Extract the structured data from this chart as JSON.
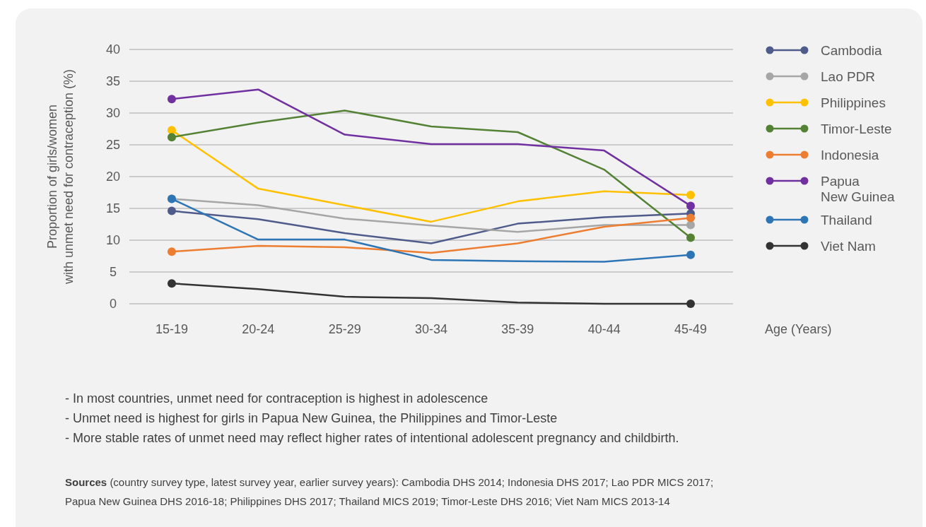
{
  "chart_data": {
    "type": "line",
    "ylabel": "Proportion of girls/women\nwith unmet need for contraception (%)",
    "xlabel": "Age (Years)",
    "categories": [
      "15-19",
      "20-24",
      "25-29",
      "30-34",
      "35-39",
      "40-44",
      "45-49"
    ],
    "ylim": [
      0,
      40
    ],
    "yticks": [
      0,
      5,
      10,
      15,
      20,
      25,
      30,
      35,
      40
    ],
    "grid": "y",
    "legend": "right",
    "line_style": "solid",
    "series": [
      {
        "name": "Cambodia",
        "color": "#4f5b8a",
        "values": [
          14.6,
          13.3,
          11.1,
          9.5,
          12.6,
          13.6,
          14.2
        ]
      },
      {
        "name": "Lao PDR",
        "color": "#a6a6a6",
        "values": [
          16.5,
          15.5,
          13.4,
          12.3,
          11.3,
          12.4,
          12.4
        ]
      },
      {
        "name": "Philippines",
        "color": "#ffc000",
        "values": [
          27.3,
          18.1,
          15.5,
          12.9,
          16.1,
          17.7,
          17.1
        ]
      },
      {
        "name": "Timor-Leste",
        "color": "#548235",
        "values": [
          26.2,
          28.5,
          30.4,
          27.9,
          27.0,
          21.1,
          10.4
        ]
      },
      {
        "name": "Indonesia",
        "color": "#ed7d31",
        "values": [
          8.2,
          9.1,
          8.9,
          8.0,
          9.5,
          12.1,
          13.5
        ]
      },
      {
        "name": "Papua New Guinea",
        "color": "#7030a0",
        "values": [
          32.2,
          33.7,
          26.6,
          25.1,
          25.1,
          24.1,
          15.4
        ]
      },
      {
        "name": "Thailand",
        "color": "#2e75b6",
        "values": [
          16.5,
          10.1,
          10.1,
          6.9,
          6.7,
          6.6,
          7.7
        ]
      },
      {
        "name": "Viet Nam",
        "color": "#333333",
        "values": [
          3.2,
          2.3,
          1.1,
          0.9,
          0.2,
          0,
          0
        ]
      }
    ],
    "annotations": [
      "- In most countries, unmet need for contraception is highest in adolescence",
      "- Unmet need is highest for girls in Papua New Guinea, the Philippines and Timor-Leste",
      "- More stable rates of unmet need may reflect higher rates of intentional adolescent pregnancy and childbirth.",
      "Sources (country survey type, latest survey year, earlier survey years): Cambodia DHS 2014; Indonesia DHS 2017; Lao PDR MICS 2017; Papua New Guinea DHS 2016-18; Philippines DHS 2017; Thailand MICS 2019; Timor-Leste DHS 2016; Viet Nam MICS 2013-14"
    ]
  }
}
